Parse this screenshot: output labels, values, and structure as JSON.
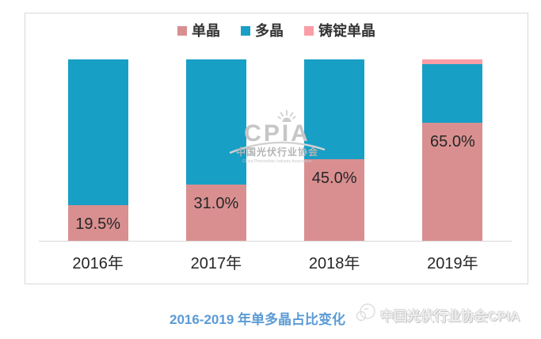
{
  "chart_data": {
    "type": "bar",
    "stacked": true,
    "orientation": "vertical",
    "title": "2016-2019 年单多晶占比变化",
    "categories": [
      "2016年",
      "2017年",
      "2018年",
      "2019年"
    ],
    "series": [
      {
        "name": "单晶",
        "color": "#D98F90",
        "values": [
          19.5,
          31.0,
          45.0,
          65.0
        ],
        "data_labels": [
          "19.5%",
          "31.0%",
          "45.0%",
          "65.0%"
        ]
      },
      {
        "name": "多晶",
        "color": "#189FC5",
        "values": [
          80.5,
          69.0,
          55.0,
          32.5
        ],
        "data_labels": [
          "",
          "",
          "",
          ""
        ]
      },
      {
        "name": "铸锭单晶",
        "color": "#FA9DA6",
        "values": [
          0,
          0,
          0,
          2.5
        ],
        "data_labels": [
          "",
          "",
          "",
          ""
        ]
      }
    ],
    "ylim": [
      0,
      100
    ],
    "unit": "percent",
    "legend_position": "top-center",
    "grid": false
  },
  "watermark": {
    "logo": "CPIA",
    "org_cn": "中国光伏行业协会",
    "org_en": "China Photovoltaic Industry Association",
    "sun_icon": "sun-rays-icon"
  },
  "footer": {
    "caption": "2016-2019 年单多晶占比变化",
    "source": "中国光伏行业协会CPIA"
  },
  "colors": {
    "caption_blue": "#5B9BD5",
    "axis_line": "#D9D9D9",
    "panel_border": "#D9D9D9",
    "label_text": "#262626",
    "watermark_gray": "#C6C6C6"
  }
}
